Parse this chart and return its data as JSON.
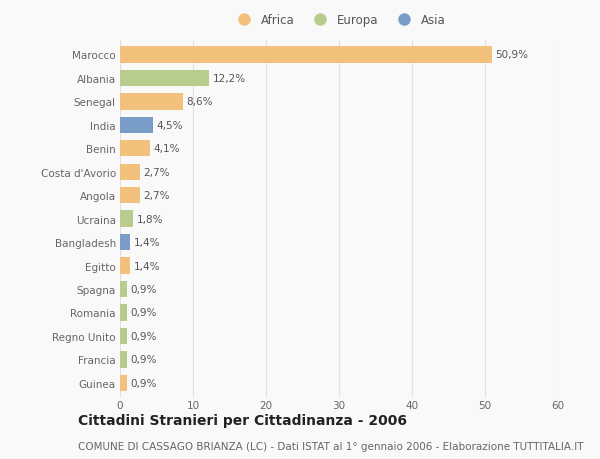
{
  "categories": [
    "Marocco",
    "Albania",
    "Senegal",
    "India",
    "Benin",
    "Costa d'Avorio",
    "Angola",
    "Ucraina",
    "Bangladesh",
    "Egitto",
    "Spagna",
    "Romania",
    "Regno Unito",
    "Francia",
    "Guinea"
  ],
  "values": [
    50.9,
    12.2,
    8.6,
    4.5,
    4.1,
    2.7,
    2.7,
    1.8,
    1.4,
    1.4,
    0.9,
    0.9,
    0.9,
    0.9,
    0.9
  ],
  "labels": [
    "50,9%",
    "12,2%",
    "8,6%",
    "4,5%",
    "4,1%",
    "2,7%",
    "2,7%",
    "1,8%",
    "1,4%",
    "1,4%",
    "0,9%",
    "0,9%",
    "0,9%",
    "0,9%",
    "0,9%"
  ],
  "continents": [
    "Africa",
    "Europa",
    "Africa",
    "Asia",
    "Africa",
    "Africa",
    "Africa",
    "Europa",
    "Asia",
    "Africa",
    "Europa",
    "Europa",
    "Europa",
    "Europa",
    "Africa"
  ],
  "colors": {
    "Africa": "#F2C27D",
    "Europa": "#B8CC8E",
    "Asia": "#7A9DC8"
  },
  "xlim": [
    0,
    60
  ],
  "xticks": [
    0,
    10,
    20,
    30,
    40,
    50,
    60
  ],
  "title": "Cittadini Stranieri per Cittadinanza - 2006",
  "subtitle": "COMUNE DI CASSAGO BRIANZA (LC) - Dati ISTAT al 1° gennaio 2006 - Elaborazione TUTTITALIA.IT",
  "background_color": "#f9f9f9",
  "grid_color": "#e0e0e0",
  "bar_height": 0.7,
  "title_fontsize": 10,
  "subtitle_fontsize": 7.5,
  "tick_fontsize": 7.5,
  "label_fontsize": 7.5,
  "legend_fontsize": 8.5
}
